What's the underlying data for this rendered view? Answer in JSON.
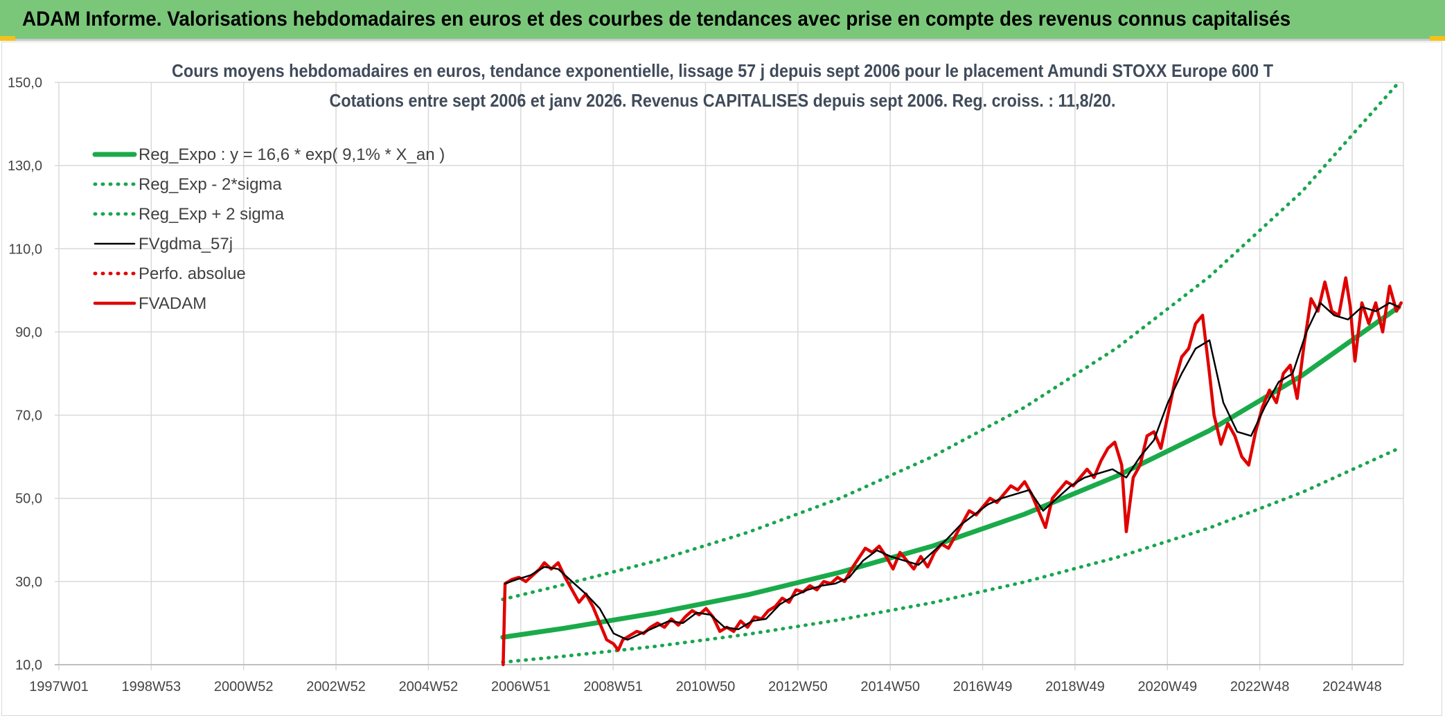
{
  "header": {
    "title": "ADAM Informe. Valorisations hebdomadaires en euros et des courbes de tendances avec prise en compte des revenus connus capitalisés"
  },
  "colors": {
    "header_bg": "#7ac77a",
    "reg_green": "#1aaa4a",
    "dotted_green": "#19a54f",
    "black_line": "#000000",
    "red_line": "#e00000",
    "grid": "#d9d9d9"
  },
  "chart_data": {
    "type": "line",
    "title": "Cours moyens hebdomadaires en euros, tendance exponentielle, lissage 57 j depuis sept 2006 pour le placement Amundi STOXX Europe 600 T",
    "subtitle": "Cotations entre sept 2006 et janv 2026. Revenus CAPITALISES depuis sept 2006. Reg. croiss. : 11,8/20.",
    "xlabel": "",
    "ylabel": "",
    "ylim": [
      10,
      150
    ],
    "yticks": [
      "150,0",
      "130,0",
      "110,0",
      "90,0",
      "70,0",
      "50,0",
      "30,0",
      "10,0"
    ],
    "xticks": [
      "1997W01",
      "1998W53",
      "2000W52",
      "2002W52",
      "2004W52",
      "2006W51",
      "2008W51",
      "2010W50",
      "2012W50",
      "2014W50",
      "2016W49",
      "2018W49",
      "2020W49",
      "2022W48",
      "2024W48"
    ],
    "xlim": [
      1997.0,
      2026.2
    ],
    "grid": true,
    "legend_position": "top-left",
    "series": [
      {
        "name": "Reg_Expo : y = 16,6 * exp( 9,1% *  X_an )",
        "style": "solid-thick",
        "color": "#1aaa4a",
        "x": [
          2006.7,
          2008,
          2010,
          2012,
          2014,
          2016,
          2018,
          2020,
          2022,
          2024,
          2026.1
        ],
        "y": [
          16.6,
          18.7,
          22.4,
          26.8,
          32.2,
          38.5,
          46.2,
          55.4,
          66.3,
          79.5,
          96.0
        ]
      },
      {
        "name": "Reg_Exp - 2*sigma",
        "style": "dotted",
        "color": "#19a54f",
        "x": [
          2006.7,
          2008,
          2010,
          2012,
          2014,
          2016,
          2018,
          2020,
          2022,
          2024,
          2026.1
        ],
        "y": [
          10.6,
          12.0,
          14.4,
          17.3,
          20.8,
          24.9,
          29.9,
          35.8,
          42.9,
          51.4,
          62.0
        ]
      },
      {
        "name": "Reg_Exp + 2 sigma",
        "style": "dotted",
        "color": "#19a54f",
        "x": [
          2006.7,
          2008,
          2010,
          2012,
          2014,
          2016,
          2018,
          2020,
          2022,
          2024,
          2026.1
        ],
        "y": [
          25.7,
          29.2,
          34.9,
          41.8,
          50.0,
          60.0,
          71.9,
          86.2,
          103.3,
          123.7,
          150.0
        ]
      },
      {
        "name": "FVgdma_57j",
        "style": "solid",
        "color": "#000000",
        "x": [
          2006.75,
          2007.0,
          2007.3,
          2007.6,
          2007.9,
          2008.2,
          2008.5,
          2008.8,
          2009.1,
          2009.4,
          2009.7,
          2010.0,
          2010.3,
          2010.6,
          2010.9,
          2011.2,
          2011.5,
          2011.8,
          2012.1,
          2012.4,
          2012.7,
          2013.0,
          2013.3,
          2013.6,
          2013.9,
          2014.2,
          2014.5,
          2014.8,
          2015.1,
          2015.4,
          2015.7,
          2016.0,
          2016.3,
          2016.6,
          2016.9,
          2017.2,
          2017.5,
          2017.8,
          2018.1,
          2018.4,
          2018.7,
          2019.0,
          2019.3,
          2019.6,
          2019.9,
          2020.2,
          2020.5,
          2020.8,
          2021.1,
          2021.4,
          2021.7,
          2022.0,
          2022.3,
          2022.6,
          2022.9,
          2023.2,
          2023.5,
          2023.8,
          2024.1,
          2024.4,
          2024.7,
          2025.0,
          2025.3,
          2025.6,
          2025.9,
          2026.1
        ],
        "y": [
          29.5,
          30.5,
          31.5,
          33.5,
          33.0,
          30.0,
          27.0,
          23.5,
          17.5,
          16.0,
          17.5,
          19.0,
          20.5,
          20.0,
          22.5,
          22.0,
          19.0,
          18.5,
          20.5,
          21.0,
          24.5,
          26.5,
          28.0,
          29.0,
          29.5,
          31.0,
          35.0,
          37.5,
          36.0,
          35.0,
          34.0,
          37.0,
          40.0,
          43.5,
          46.0,
          48.5,
          50.0,
          51.0,
          52.0,
          47.0,
          50.0,
          53.0,
          55.0,
          56.0,
          57.0,
          55.0,
          60.0,
          64.0,
          73.0,
          80.0,
          86.0,
          88.0,
          73.0,
          66.0,
          65.0,
          72.0,
          78.0,
          80.0,
          90.0,
          97.0,
          94.0,
          93.0,
          96.0,
          95.0,
          97.0,
          96.0
        ]
      },
      {
        "name": "Perfo. absolue",
        "style": "dotted",
        "color": "#e00000",
        "x": [],
        "y": []
      },
      {
        "name": "FVADAM",
        "style": "solid-thick",
        "color": "#e00000",
        "x": [
          2006.71,
          2006.75,
          2006.9,
          2007.05,
          2007.2,
          2007.35,
          2007.5,
          2007.6,
          2007.75,
          2007.9,
          2008.05,
          2008.2,
          2008.35,
          2008.5,
          2008.65,
          2008.8,
          2008.95,
          2009.1,
          2009.2,
          2009.3,
          2009.45,
          2009.6,
          2009.75,
          2009.9,
          2010.05,
          2010.2,
          2010.35,
          2010.5,
          2010.65,
          2010.8,
          2010.95,
          2011.1,
          2011.25,
          2011.4,
          2011.55,
          2011.7,
          2011.85,
          2012.0,
          2012.15,
          2012.3,
          2012.45,
          2012.6,
          2012.75,
          2012.9,
          2013.05,
          2013.2,
          2013.35,
          2013.5,
          2013.65,
          2013.8,
          2013.95,
          2014.1,
          2014.25,
          2014.4,
          2014.55,
          2014.7,
          2014.85,
          2015.0,
          2015.15,
          2015.3,
          2015.45,
          2015.6,
          2015.75,
          2015.9,
          2016.05,
          2016.2,
          2016.35,
          2016.5,
          2016.65,
          2016.8,
          2016.95,
          2017.1,
          2017.25,
          2017.4,
          2017.55,
          2017.7,
          2017.85,
          2018.0,
          2018.15,
          2018.3,
          2018.45,
          2018.6,
          2018.75,
          2018.9,
          2019.05,
          2019.2,
          2019.35,
          2019.5,
          2019.65,
          2019.8,
          2019.95,
          2020.1,
          2020.2,
          2020.35,
          2020.5,
          2020.65,
          2020.8,
          2020.95,
          2021.1,
          2021.25,
          2021.4,
          2021.55,
          2021.7,
          2021.85,
          2022.0,
          2022.1,
          2022.25,
          2022.4,
          2022.55,
          2022.7,
          2022.85,
          2023.0,
          2023.15,
          2023.3,
          2023.45,
          2023.6,
          2023.75,
          2023.9,
          2024.05,
          2024.2,
          2024.35,
          2024.5,
          2024.65,
          2024.8,
          2024.95,
          2025.05,
          2025.15,
          2025.3,
          2025.45,
          2025.6,
          2025.75,
          2025.9,
          2026.05,
          2026.15
        ],
        "y": [
          10.0,
          29.5,
          30.5,
          31.0,
          30.0,
          31.5,
          33.0,
          34.5,
          33.0,
          34.5,
          31.0,
          28.0,
          25.0,
          27.0,
          24.0,
          20.0,
          16.0,
          15.0,
          13.5,
          16.0,
          17.0,
          18.0,
          17.5,
          19.0,
          20.0,
          19.0,
          21.0,
          19.5,
          21.5,
          23.0,
          22.0,
          23.5,
          21.5,
          18.0,
          19.0,
          18.0,
          20.5,
          19.0,
          21.5,
          21.0,
          23.0,
          24.0,
          26.0,
          25.0,
          28.0,
          27.5,
          29.0,
          28.0,
          30.0,
          29.5,
          31.0,
          30.0,
          33.0,
          35.5,
          38.0,
          37.0,
          38.5,
          36.0,
          33.0,
          37.0,
          35.0,
          33.0,
          36.0,
          33.5,
          37.0,
          39.0,
          38.0,
          41.0,
          44.0,
          47.0,
          46.0,
          48.0,
          50.0,
          49.0,
          51.0,
          53.0,
          52.0,
          54.0,
          51.0,
          47.0,
          43.0,
          50.0,
          52.0,
          54.0,
          53.0,
          55.0,
          57.0,
          55.0,
          59.0,
          62.0,
          63.5,
          58.0,
          42.0,
          55.0,
          58.0,
          65.0,
          66.0,
          62.0,
          70.0,
          78.0,
          84.0,
          86.0,
          92.0,
          94.0,
          80.0,
          70.0,
          63.0,
          68.0,
          65.0,
          60.0,
          58.0,
          66.0,
          72.0,
          76.0,
          73.0,
          80.0,
          82.0,
          74.0,
          87.0,
          98.0,
          95.0,
          102.0,
          95.0,
          94.0,
          103.0,
          96.0,
          83.0,
          97.0,
          92.0,
          97.0,
          90.0,
          101.0,
          95.0,
          97.0
        ]
      }
    ]
  }
}
